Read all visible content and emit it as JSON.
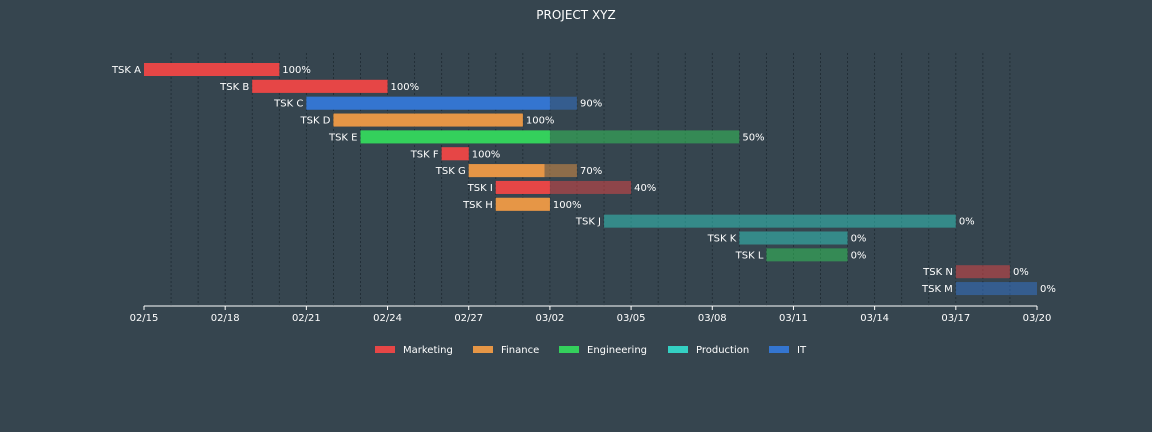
{
  "chart_data": {
    "type": "gantt",
    "title": "PROJECT XYZ",
    "x_axis": {
      "ticks": [
        "02/15",
        "02/18",
        "02/21",
        "02/24",
        "02/27",
        "03/02",
        "03/05",
        "03/08",
        "03/11",
        "03/14",
        "03/17",
        "03/20"
      ],
      "range": [
        "2022-02-15",
        "2022-03-20"
      ]
    },
    "grid": "vertical dashed, daily",
    "legend": {
      "placement": "bottom-center",
      "entries": [
        {
          "name": "Marketing",
          "color": "#E64646"
        },
        {
          "name": "Finance",
          "color": "#E69646"
        },
        {
          "name": "Engineering",
          "color": "#34D05C"
        },
        {
          "name": "Production",
          "color": "#34D0C3"
        },
        {
          "name": "IT",
          "color": "#3475D0"
        }
      ]
    },
    "tasks": [
      {
        "name": "TSK A",
        "department": "Marketing",
        "start": "2022-02-15",
        "end": "2022-02-20",
        "completion": "100%"
      },
      {
        "name": "TSK B",
        "department": "Marketing",
        "start": "2022-02-19",
        "end": "2022-02-24",
        "completion": "100%"
      },
      {
        "name": "TSK C",
        "department": "IT",
        "start": "2022-02-21",
        "end": "2022-03-03",
        "completion": "90%"
      },
      {
        "name": "TSK D",
        "department": "Finance",
        "start": "2022-02-22",
        "end": "2022-03-01",
        "completion": "100%"
      },
      {
        "name": "TSK E",
        "department": "Engineering",
        "start": "2022-02-23",
        "end": "2022-03-09",
        "completion": "50%"
      },
      {
        "name": "TSK F",
        "department": "Marketing",
        "start": "2022-02-26",
        "end": "2022-02-27",
        "completion": "100%"
      },
      {
        "name": "TSK G",
        "department": "Finance",
        "start": "2022-02-27",
        "end": "2022-03-03",
        "completion": "70%"
      },
      {
        "name": "TSK I",
        "department": "Marketing",
        "start": "2022-02-28",
        "end": "2022-03-05",
        "completion": "40%"
      },
      {
        "name": "TSK H",
        "department": "Finance",
        "start": "2022-02-28",
        "end": "2022-03-02",
        "completion": "100%"
      },
      {
        "name": "TSK J",
        "department": "Production",
        "start": "2022-03-04",
        "end": "2022-03-17",
        "completion": "0%"
      },
      {
        "name": "TSK K",
        "department": "Production",
        "start": "2022-03-09",
        "end": "2022-03-13",
        "completion": "0%"
      },
      {
        "name": "TSK L",
        "department": "Engineering",
        "start": "2022-03-10",
        "end": "2022-03-13",
        "completion": "0%"
      },
      {
        "name": "TSK N",
        "department": "Marketing",
        "start": "2022-03-17",
        "end": "2022-03-19",
        "completion": "0%"
      },
      {
        "name": "TSK M",
        "department": "IT",
        "start": "2022-03-17",
        "end": "2022-03-20",
        "completion": "0%"
      }
    ]
  }
}
